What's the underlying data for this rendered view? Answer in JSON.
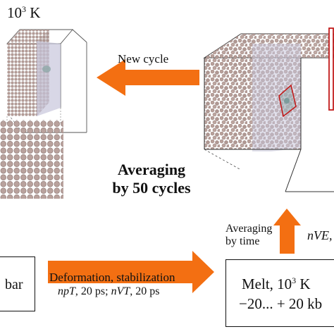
{
  "labels": {
    "temp_top_left_prefix": "10",
    "temp_top_left_exp": "3",
    "temp_top_left_suffix": " K",
    "new_cycle": "New cycle",
    "averaging_line1": "Averaging",
    "averaging_line2": "by 50 cycles",
    "averaging_time_line1": "Averaging",
    "averaging_time_line2": "by time",
    "nve": "nVE,",
    "deformation": "Deformation, stabilization",
    "ensemble_npt": "npT",
    "ensemble_npt_rest": ", 20 ps; ",
    "ensemble_nvt": "nVT",
    "ensemble_nvt_rest": ", 20 ps",
    "left_box_text": "bar",
    "melt_prefix": "Melt, 10",
    "melt_exp": "3",
    "melt_suffix": " K",
    "pressure_range": "−20... + 20 kb"
  },
  "colors": {
    "arrow": "#f36f12",
    "atom": "#b59c97",
    "slab": "#c8c6db",
    "frame_red": "#c21c1c",
    "box_edge": "#333333"
  }
}
